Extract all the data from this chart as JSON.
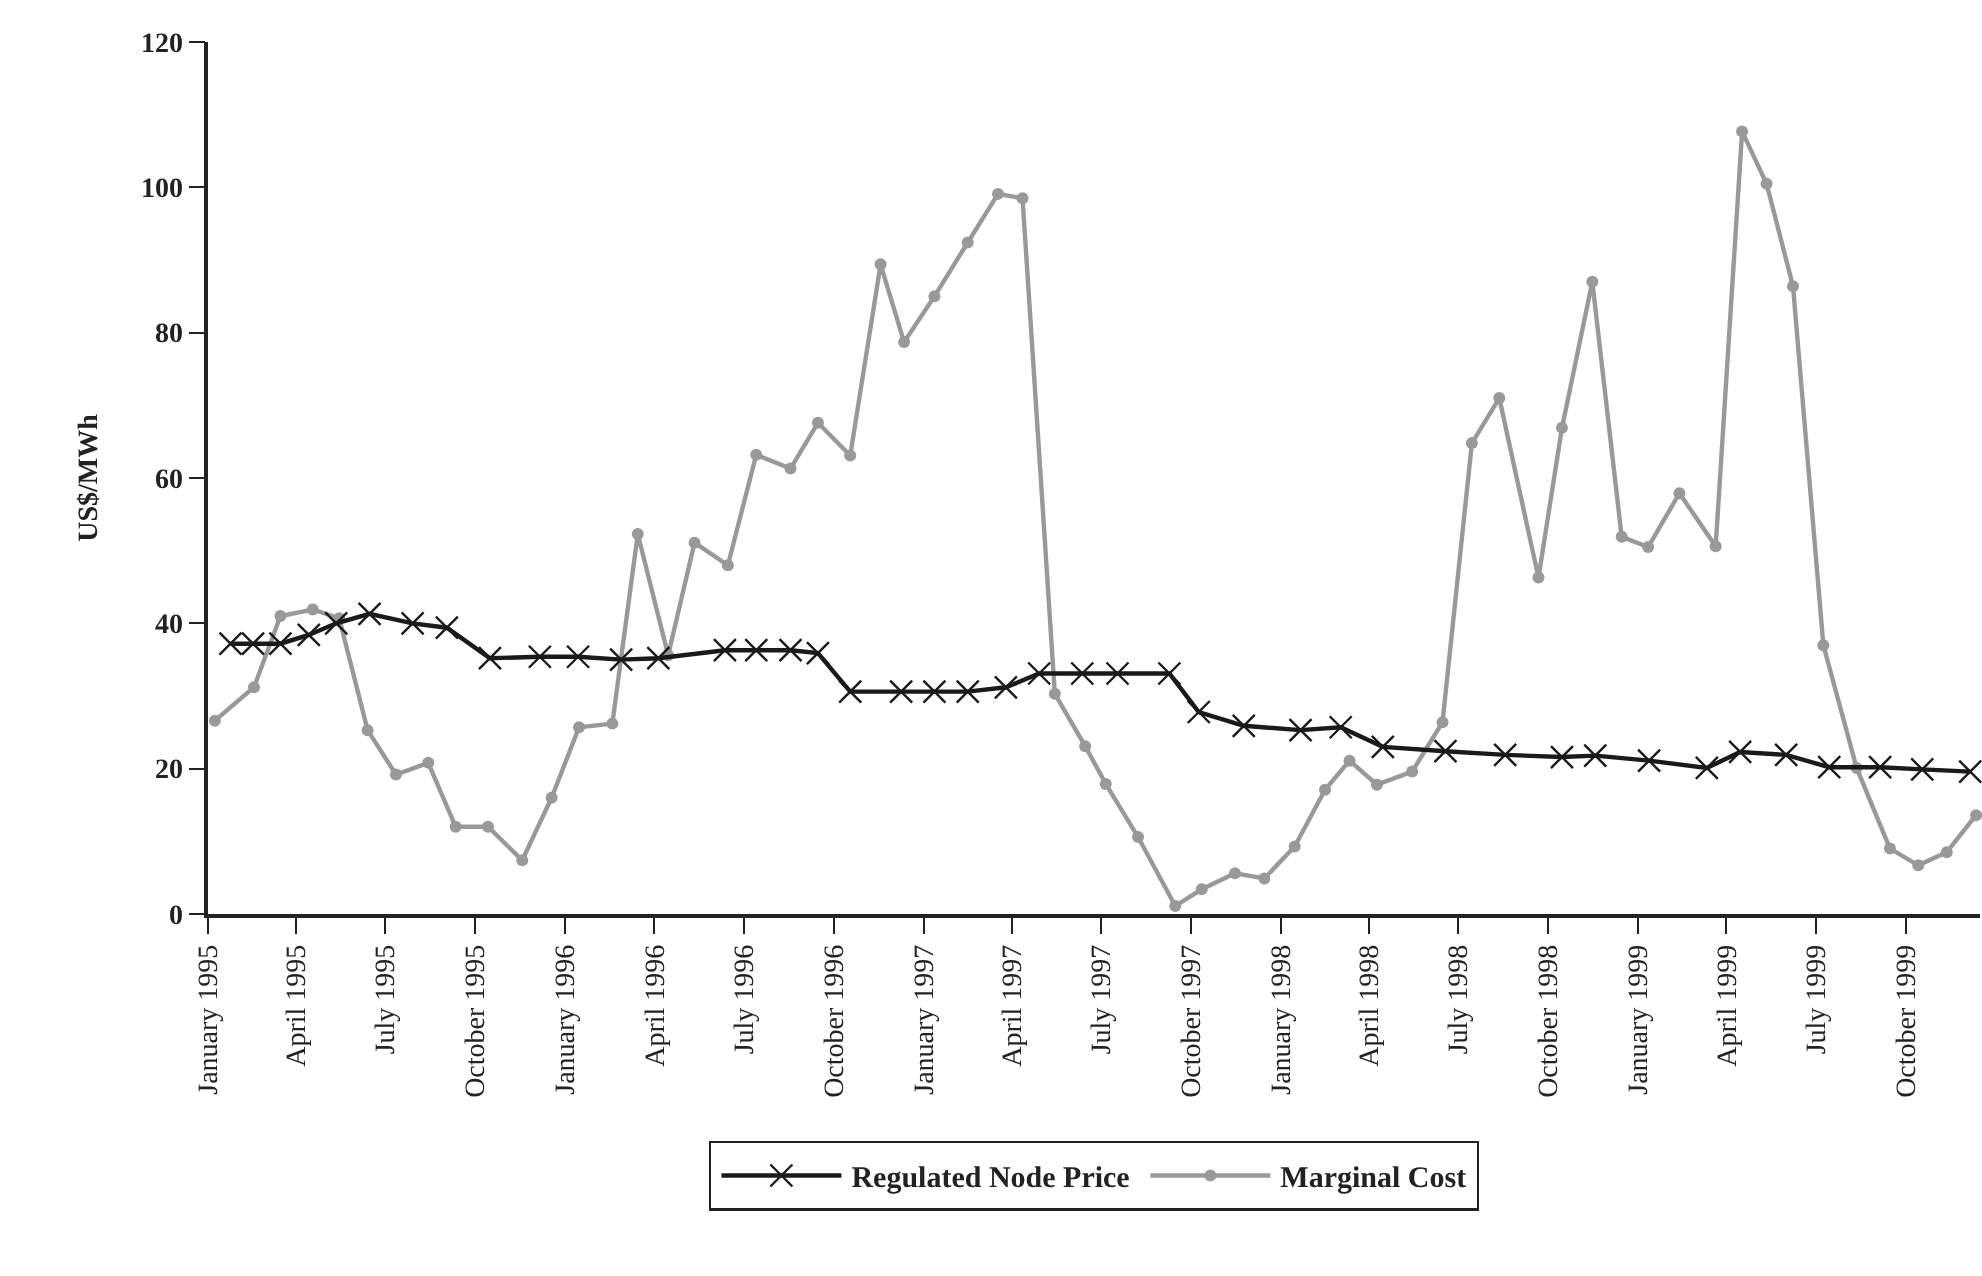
{
  "chart_data": {
    "type": "line",
    "ylabel": "US$/MWh",
    "xlim": [
      "1995-01-01",
      "1999-12-16"
    ],
    "xticks": [
      {
        "value": "1995-01-01",
        "label": "January 1995"
      },
      {
        "value": "1995-04-01",
        "label": "April 1995"
      },
      {
        "value": "1995-07-01",
        "label": "July 1995"
      },
      {
        "value": "1995-10-01",
        "label": "October 1995"
      },
      {
        "value": "1996-01-01",
        "label": "January 1996"
      },
      {
        "value": "1996-04-01",
        "label": "April 1996"
      },
      {
        "value": "1996-07-01",
        "label": "July 1996"
      },
      {
        "value": "1996-10-01",
        "label": "October 1996"
      },
      {
        "value": "1997-01-01",
        "label": "January 1997"
      },
      {
        "value": "1997-04-01",
        "label": "April 1997"
      },
      {
        "value": "1997-07-01",
        "label": "July 1997"
      },
      {
        "value": "1997-10-01",
        "label": "October 1997"
      },
      {
        "value": "1998-01-01",
        "label": "January 1998"
      },
      {
        "value": "1998-04-01",
        "label": "April 1998"
      },
      {
        "value": "1998-07-01",
        "label": "July 1998"
      },
      {
        "value": "1998-10-01",
        "label": "October 1998"
      },
      {
        "value": "1999-01-01",
        "label": "January 1999"
      },
      {
        "value": "1999-04-01",
        "label": "April 1999"
      },
      {
        "value": "1999-07-01",
        "label": "July 1999"
      },
      {
        "value": "1999-10-01",
        "label": "October 1999"
      }
    ],
    "ylim": [
      0,
      120
    ],
    "yticks": [
      0,
      20,
      40,
      60,
      80,
      100,
      120
    ],
    "grid": false,
    "legend": "bottom",
    "line_style": "solid",
    "series": [
      {
        "name": "Regulated Node Price",
        "color": "#1a1a1a",
        "marker": "cross",
        "x": [
          "1995-01-24",
          "1995-02-16",
          "1995-03-16",
          "1995-04-14",
          "1995-05-12",
          "1995-06-15",
          "1995-07-29",
          "1995-09-02",
          "1995-10-16",
          "1995-12-06",
          "1996-01-14",
          "1996-02-27",
          "1996-04-05",
          "1996-06-12",
          "1996-07-14",
          "1996-08-18",
          "1996-09-15",
          "1996-10-18",
          "1996-12-09",
          "1997-01-12",
          "1997-02-15",
          "1997-03-26",
          "1997-04-29",
          "1997-06-12",
          "1997-07-18",
          "1997-09-09",
          "1997-10-09",
          "1997-11-24",
          "1998-01-21",
          "1998-03-03",
          "1998-04-15",
          "1998-06-18",
          "1998-08-18",
          "1998-10-15",
          "1998-11-18",
          "1999-01-12",
          "1999-03-12",
          "1999-04-15",
          "1999-06-01",
          "1999-07-15",
          "1999-09-05",
          "1999-10-18",
          "1999-12-06"
        ],
        "values": [
          37.2,
          37.2,
          37.2,
          38.4,
          40.0,
          41.3,
          40.0,
          39.4,
          35.2,
          35.4,
          35.4,
          35.0,
          35.2,
          36.3,
          36.3,
          36.3,
          35.9,
          30.6,
          30.6,
          30.6,
          30.6,
          31.2,
          33.1,
          33.1,
          33.1,
          33.1,
          27.8,
          25.9,
          25.3,
          25.7,
          23.0,
          22.4,
          21.9,
          21.6,
          21.8,
          21.1,
          20.1,
          22.3,
          21.9,
          20.2,
          20.2,
          19.9,
          19.6
        ]
      },
      {
        "name": "Marginal Cost",
        "color": "#999999",
        "marker": "circle",
        "x": [
          "1995-01-08",
          "1995-02-17",
          "1995-03-16",
          "1995-04-18",
          "1995-05-15",
          "1995-06-13",
          "1995-07-12",
          "1995-08-14",
          "1995-09-11",
          "1995-10-14",
          "1995-11-18",
          "1995-12-18",
          "1996-01-15",
          "1996-02-18",
          "1996-03-15",
          "1996-04-15",
          "1996-05-12",
          "1996-06-15",
          "1996-07-14",
          "1996-08-18",
          "1996-09-15",
          "1996-10-18",
          "1996-11-18",
          "1996-12-12",
          "1997-01-12",
          "1997-02-15",
          "1997-03-18",
          "1997-04-12",
          "1997-05-15",
          "1997-06-15",
          "1997-07-06",
          "1997-08-08",
          "1997-09-15",
          "1997-10-12",
          "1997-11-15",
          "1997-12-15",
          "1998-01-15",
          "1998-02-15",
          "1998-03-12",
          "1998-04-09",
          "1998-05-15",
          "1998-06-15",
          "1998-07-15",
          "1998-08-12",
          "1998-09-21",
          "1998-10-15",
          "1998-11-15",
          "1998-12-15",
          "1999-01-11",
          "1999-02-12",
          "1999-03-21",
          "1999-04-17",
          "1999-05-12",
          "1999-06-08",
          "1999-07-09",
          "1999-08-12",
          "1999-09-15",
          "1999-10-14",
          "1999-11-12",
          "1999-12-12"
        ],
        "values": [
          26.6,
          31.2,
          41.0,
          41.9,
          40.7,
          25.3,
          19.2,
          20.8,
          12.0,
          12.0,
          7.4,
          16.0,
          25.7,
          26.2,
          52.3,
          35.6,
          51.1,
          48.0,
          63.2,
          61.3,
          67.6,
          63.1,
          89.4,
          78.7,
          85.0,
          92.4,
          99.1,
          98.5,
          30.3,
          23.1,
          17.9,
          10.6,
          1.1,
          3.4,
          5.6,
          4.9,
          9.3,
          17.1,
          21.1,
          17.8,
          19.6,
          26.4,
          64.8,
          71.0,
          46.3,
          66.9,
          87.0,
          51.9,
          50.5,
          57.9,
          50.6,
          107.7,
          100.5,
          86.4,
          37.0,
          20.1,
          9.0,
          6.7,
          8.5,
          13.6
        ]
      }
    ]
  }
}
